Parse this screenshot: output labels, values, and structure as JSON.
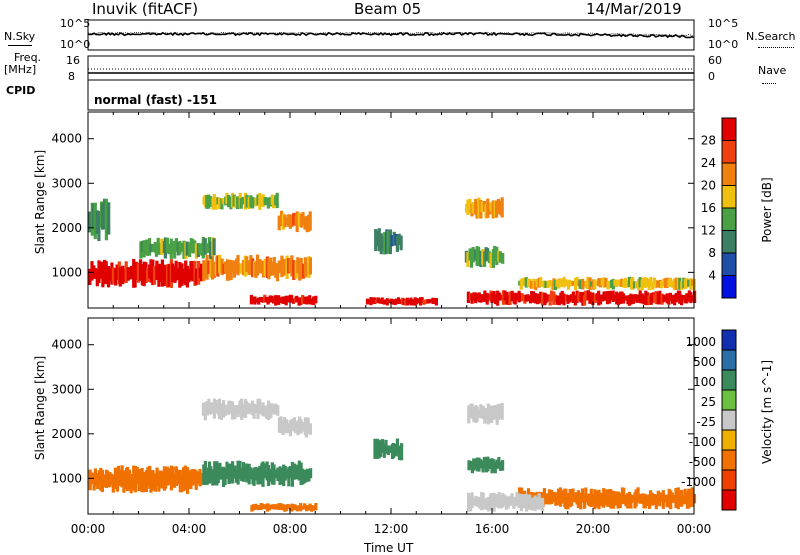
{
  "header": {
    "station": "Inuvik (fitACF)",
    "beam": "Beam 05",
    "date": "14/Mar/2019"
  },
  "panel_labels": {
    "nsky": "N.Sky",
    "nsearch": "N.Search",
    "freq": "Freq.",
    "freq_unit": "[MHz]",
    "nave": "Nave",
    "cpid": "CPID",
    "cpid_value": "normal (fast) -151",
    "nsky_ticks": [
      "10^5",
      "10^0"
    ],
    "nsearch_ticks": [
      "10^5",
      "10^0"
    ],
    "freq_ticks": [
      "16",
      "8"
    ],
    "nave_ticks": [
      "60",
      "0"
    ]
  },
  "chart_data": [
    {
      "type": "heatmap",
      "title": "",
      "xlabel": "",
      "ylabel": "Slant Range [km]",
      "ylim": [
        200,
        4600
      ],
      "xlim": [
        "00:00",
        "24:00"
      ],
      "y_ticks": [
        1000,
        2000,
        3000,
        4000
      ],
      "colorbar": {
        "label": "Power [dB]",
        "ticks": [
          4,
          8,
          12,
          16,
          20,
          24,
          28
        ],
        "range": [
          0,
          32
        ],
        "colors": [
          "#0010e0",
          "#1f4fa8",
          "#3c7f62",
          "#4aa045",
          "#f0c010",
          "#f08010",
          "#f04010",
          "#e00000"
        ]
      },
      "regions": [
        {
          "t": [
            0.0,
            4.5
          ],
          "r": [
            650,
            1300
          ],
          "v": 30
        },
        {
          "t": [
            4.5,
            8.8
          ],
          "r": [
            800,
            1400
          ],
          "v": 22
        },
        {
          "t": [
            2.0,
            5.0
          ],
          "r": [
            1300,
            1800
          ],
          "v": 14
        },
        {
          "t": [
            4.5,
            7.5
          ],
          "r": [
            2400,
            2800
          ],
          "v": 16
        },
        {
          "t": [
            7.5,
            8.8
          ],
          "r": [
            1900,
            2400
          ],
          "v": 22
        },
        {
          "t": [
            0.0,
            0.8
          ],
          "r": [
            1700,
            2700
          ],
          "v": 12
        },
        {
          "t": [
            11.3,
            12.4
          ],
          "r": [
            1400,
            2000
          ],
          "v": 10
        },
        {
          "t": [
            14.9,
            16.4
          ],
          "r": [
            1100,
            1600
          ],
          "v": 14
        },
        {
          "t": [
            14.9,
            16.4
          ],
          "r": [
            2200,
            2700
          ],
          "v": 20
        },
        {
          "t": [
            6.4,
            9.0
          ],
          "r": [
            250,
            500
          ],
          "v": 30
        },
        {
          "t": [
            11.0,
            13.8
          ],
          "r": [
            250,
            450
          ],
          "v": 30
        },
        {
          "t": [
            15.0,
            24.0
          ],
          "r": [
            250,
            600
          ],
          "v": 30
        },
        {
          "t": [
            17.0,
            24.0
          ],
          "r": [
            600,
            900
          ],
          "v": 18
        }
      ]
    },
    {
      "type": "heatmap",
      "title": "",
      "xlabel": "Time UT",
      "ylabel": "Slant Range [km]",
      "ylim": [
        200,
        4600
      ],
      "xlim": [
        "00:00",
        "24:00"
      ],
      "x_ticks": [
        "00:00",
        "04:00",
        "08:00",
        "12:00",
        "16:00",
        "20:00",
        "00:00"
      ],
      "y_ticks": [
        1000,
        2000,
        3000,
        4000
      ],
      "colorbar": {
        "label": "Velocity [m s^-1]",
        "ticks": [
          "1000",
          "500",
          "100",
          "25",
          "-25",
          "-100",
          "-500",
          "-1000"
        ],
        "colors": [
          "#1030b0",
          "#2a6ea8",
          "#3b8a5c",
          "#6cc040",
          "#c8c8c8",
          "#f0b000",
          "#f07000",
          "#f04000",
          "#e00000"
        ]
      },
      "regions": [
        {
          "t": [
            0.0,
            4.5
          ],
          "r": [
            650,
            1300
          ],
          "v": -100
        },
        {
          "t": [
            4.5,
            8.8
          ],
          "r": [
            800,
            1400
          ],
          "v": 500
        },
        {
          "t": [
            4.5,
            7.5
          ],
          "r": [
            2300,
            2800
          ],
          "v": 0
        },
        {
          "t": [
            7.5,
            8.8
          ],
          "r": [
            1900,
            2400
          ],
          "v": 0
        },
        {
          "t": [
            15.0,
            16.4
          ],
          "r": [
            2200,
            2700
          ],
          "v": 0
        },
        {
          "t": [
            15.0,
            16.4
          ],
          "r": [
            1100,
            1500
          ],
          "v": 500
        },
        {
          "t": [
            11.3,
            12.4
          ],
          "r": [
            1400,
            1900
          ],
          "v": 500
        },
        {
          "t": [
            17.0,
            24.0
          ],
          "r": [
            300,
            800
          ],
          "v": -100
        },
        {
          "t": [
            15.0,
            18.0
          ],
          "r": [
            250,
            700
          ],
          "v": 0
        },
        {
          "t": [
            6.4,
            9.0
          ],
          "r": [
            250,
            450
          ],
          "v": -100
        }
      ]
    }
  ],
  "xlabel": "Time UT"
}
